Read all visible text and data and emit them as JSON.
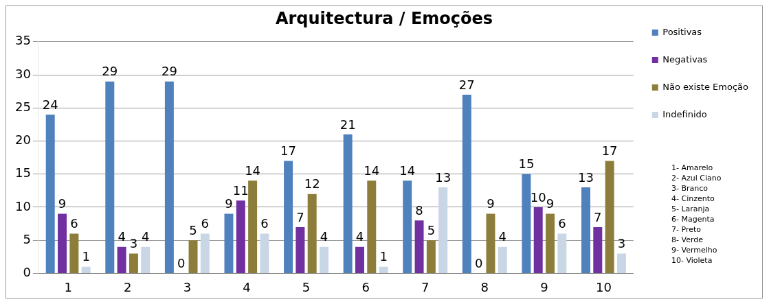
{
  "chart_data": {
    "type": "bar",
    "title": "Arquitectura / Emoções",
    "categories": [
      "1",
      "2",
      "3",
      "4",
      "5",
      "6",
      "7",
      "8",
      "9",
      "10"
    ],
    "series": [
      {
        "name": "Positivas",
        "color": "#4f81bd",
        "values": [
          24,
          29,
          29,
          9,
          17,
          21,
          14,
          27,
          15,
          13
        ]
      },
      {
        "name": "Negativas",
        "color": "#7030a0",
        "values": [
          9,
          4,
          0,
          11,
          7,
          4,
          8,
          0,
          10,
          7
        ]
      },
      {
        "name": "Não existe Emoção",
        "color": "#8c7e3a",
        "values": [
          6,
          3,
          5,
          14,
          12,
          14,
          5,
          9,
          9,
          17
        ]
      },
      {
        "name": "Indefinido",
        "color": "#c9d6e6",
        "values": [
          1,
          4,
          6,
          6,
          4,
          1,
          13,
          4,
          6,
          3
        ]
      }
    ],
    "ylim": [
      0,
      35
    ],
    "yticks": [
      0,
      5,
      10,
      15,
      20,
      25,
      30,
      35
    ],
    "grid": "y",
    "legend": "right",
    "data_labels": true,
    "annotations": [
      "1- Amarelo",
      "2- Azul Ciano",
      "3- Branco",
      "4- Cinzento",
      "5- Laranja",
      "6- Magenta",
      "7- Preto",
      "8- Verde",
      "9- Vermelho",
      "10- Violeta"
    ]
  }
}
